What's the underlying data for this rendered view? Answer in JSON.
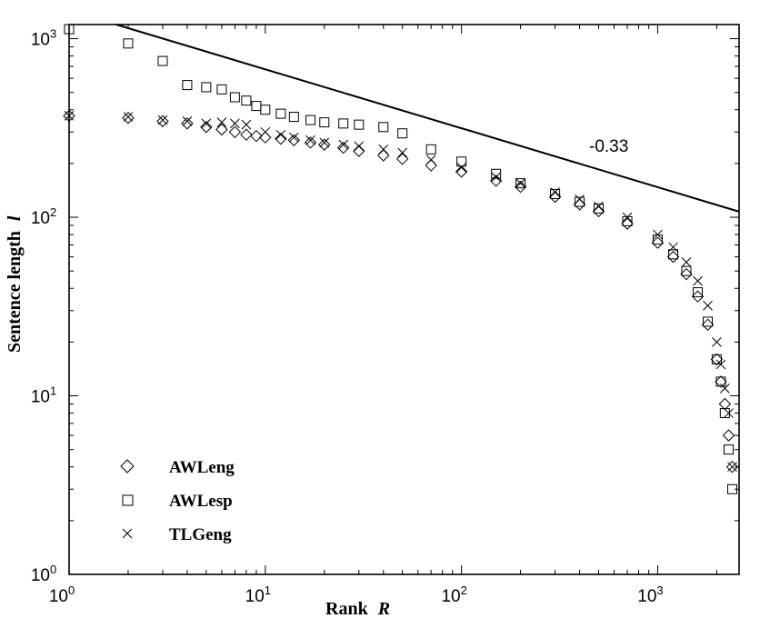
{
  "chart_data": {
    "type": "scatter",
    "title": "",
    "xlabel": "Rank",
    "xlabel_var": "R",
    "ylabel": "Sentence length",
    "ylabel_var": "l",
    "xscale": "log",
    "yscale": "log",
    "xlim": [
      1,
      2600
    ],
    "ylim": [
      1,
      1200
    ],
    "x_ticks": [
      {
        "value": 1,
        "base": "10",
        "exp": "0"
      },
      {
        "value": 10,
        "base": "10",
        "exp": "1"
      },
      {
        "value": 100,
        "base": "10",
        "exp": "2"
      },
      {
        "value": 1000,
        "base": "10",
        "exp": "3"
      }
    ],
    "y_ticks": [
      {
        "value": 1,
        "base": "10",
        "exp": "0"
      },
      {
        "value": 10,
        "base": "10",
        "exp": "1"
      },
      {
        "value": 100,
        "base": "10",
        "exp": "2"
      },
      {
        "value": 1000,
        "base": "10",
        "exp": "3"
      }
    ],
    "legend_position": "bottom-left",
    "series": [
      {
        "name": "AWLeng",
        "marker": "diamond",
        "x": [
          1,
          2,
          3,
          4,
          5,
          6,
          7,
          8,
          9,
          10,
          12,
          14,
          17,
          20,
          25,
          30,
          40,
          50,
          70,
          100,
          150,
          200,
          300,
          400,
          500,
          700,
          1000,
          1200,
          1400,
          1600,
          1800,
          2000,
          2100,
          2200,
          2300,
          2400
        ],
        "y": [
          370,
          360,
          345,
          335,
          320,
          310,
          300,
          290,
          285,
          280,
          275,
          270,
          262,
          255,
          245,
          235,
          222,
          212,
          195,
          180,
          160,
          148,
          130,
          118,
          108,
          92,
          72,
          60,
          48,
          36,
          25,
          16,
          12,
          9,
          6,
          4
        ]
      },
      {
        "name": "AWLesp",
        "marker": "square",
        "x": [
          1,
          2,
          3,
          4,
          5,
          6,
          7,
          8,
          9,
          10,
          12,
          14,
          17,
          20,
          25,
          30,
          40,
          50,
          70,
          100,
          150,
          200,
          300,
          400,
          500,
          700,
          1000,
          1200,
          1400,
          1600,
          1800,
          2000,
          2100,
          2200,
          2300,
          2400
        ],
        "y": [
          1130,
          940,
          750,
          550,
          535,
          520,
          470,
          450,
          420,
          400,
          380,
          365,
          350,
          340,
          335,
          330,
          320,
          295,
          240,
          205,
          175,
          155,
          135,
          122,
          112,
          95,
          75,
          62,
          50,
          38,
          26,
          16,
          12,
          8,
          5,
          3
        ]
      },
      {
        "name": "TLGeng",
        "marker": "cross",
        "x": [
          1,
          2,
          3,
          4,
          5,
          6,
          7,
          8,
          10,
          12,
          14,
          17,
          20,
          25,
          30,
          40,
          50,
          70,
          100,
          150,
          200,
          300,
          400,
          500,
          700,
          1000,
          1200,
          1400,
          1600,
          1800,
          2000,
          2100,
          2200,
          2300,
          2400
        ],
        "y": [
          370,
          365,
          350,
          345,
          335,
          340,
          335,
          330,
          300,
          290,
          280,
          270,
          262,
          255,
          250,
          240,
          230,
          210,
          190,
          168,
          155,
          138,
          126,
          115,
          100,
          80,
          68,
          56,
          44,
          32,
          20,
          15,
          11,
          8,
          4
        ]
      }
    ],
    "fit_line": {
      "label": "-0.33",
      "slope": -0.33,
      "intercept_at_x1": 1440
    }
  }
}
